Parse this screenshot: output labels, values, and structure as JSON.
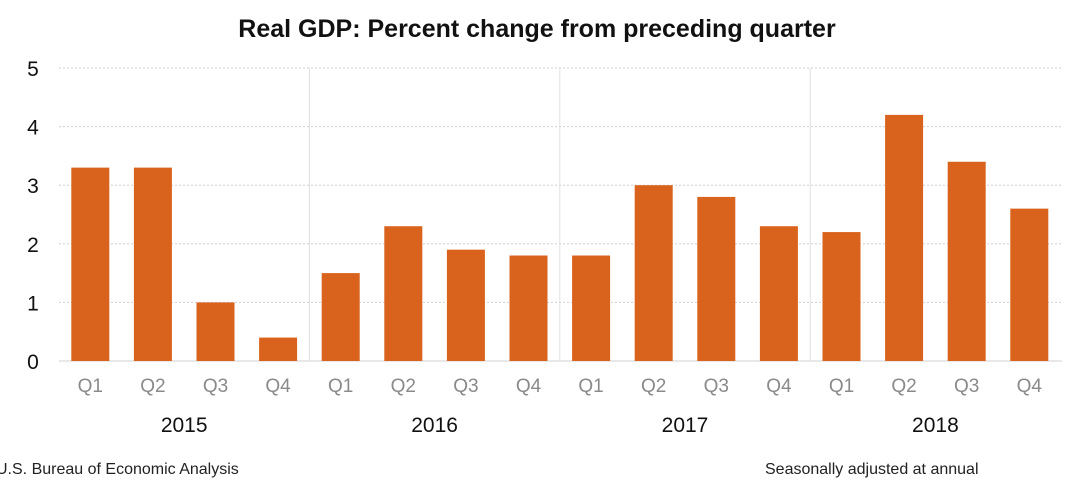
{
  "chart_data": {
    "type": "bar",
    "title": "Real GDP:  Percent change from preceding quarter",
    "categories": [
      "Q1",
      "Q2",
      "Q3",
      "Q4",
      "Q1",
      "Q2",
      "Q3",
      "Q4",
      "Q1",
      "Q2",
      "Q3",
      "Q4",
      "Q1",
      "Q2",
      "Q3",
      "Q4"
    ],
    "groups": [
      "2015",
      "2016",
      "2017",
      "2018"
    ],
    "values": [
      3.3,
      3.3,
      1.0,
      0.4,
      1.5,
      2.3,
      1.9,
      1.8,
      1.8,
      3.0,
      2.8,
      2.3,
      2.2,
      4.2,
      3.4,
      2.6
    ],
    "ylim": [
      0,
      5
    ],
    "yticks": [
      "0",
      "1",
      "2",
      "3",
      "4",
      "5"
    ],
    "grid": true,
    "bar_color": "#d9621c",
    "xlabel": "",
    "ylabel": ""
  },
  "footer": {
    "source": "U.S. Bureau of Economic Analysis",
    "note": "Seasonally adjusted at annual"
  }
}
